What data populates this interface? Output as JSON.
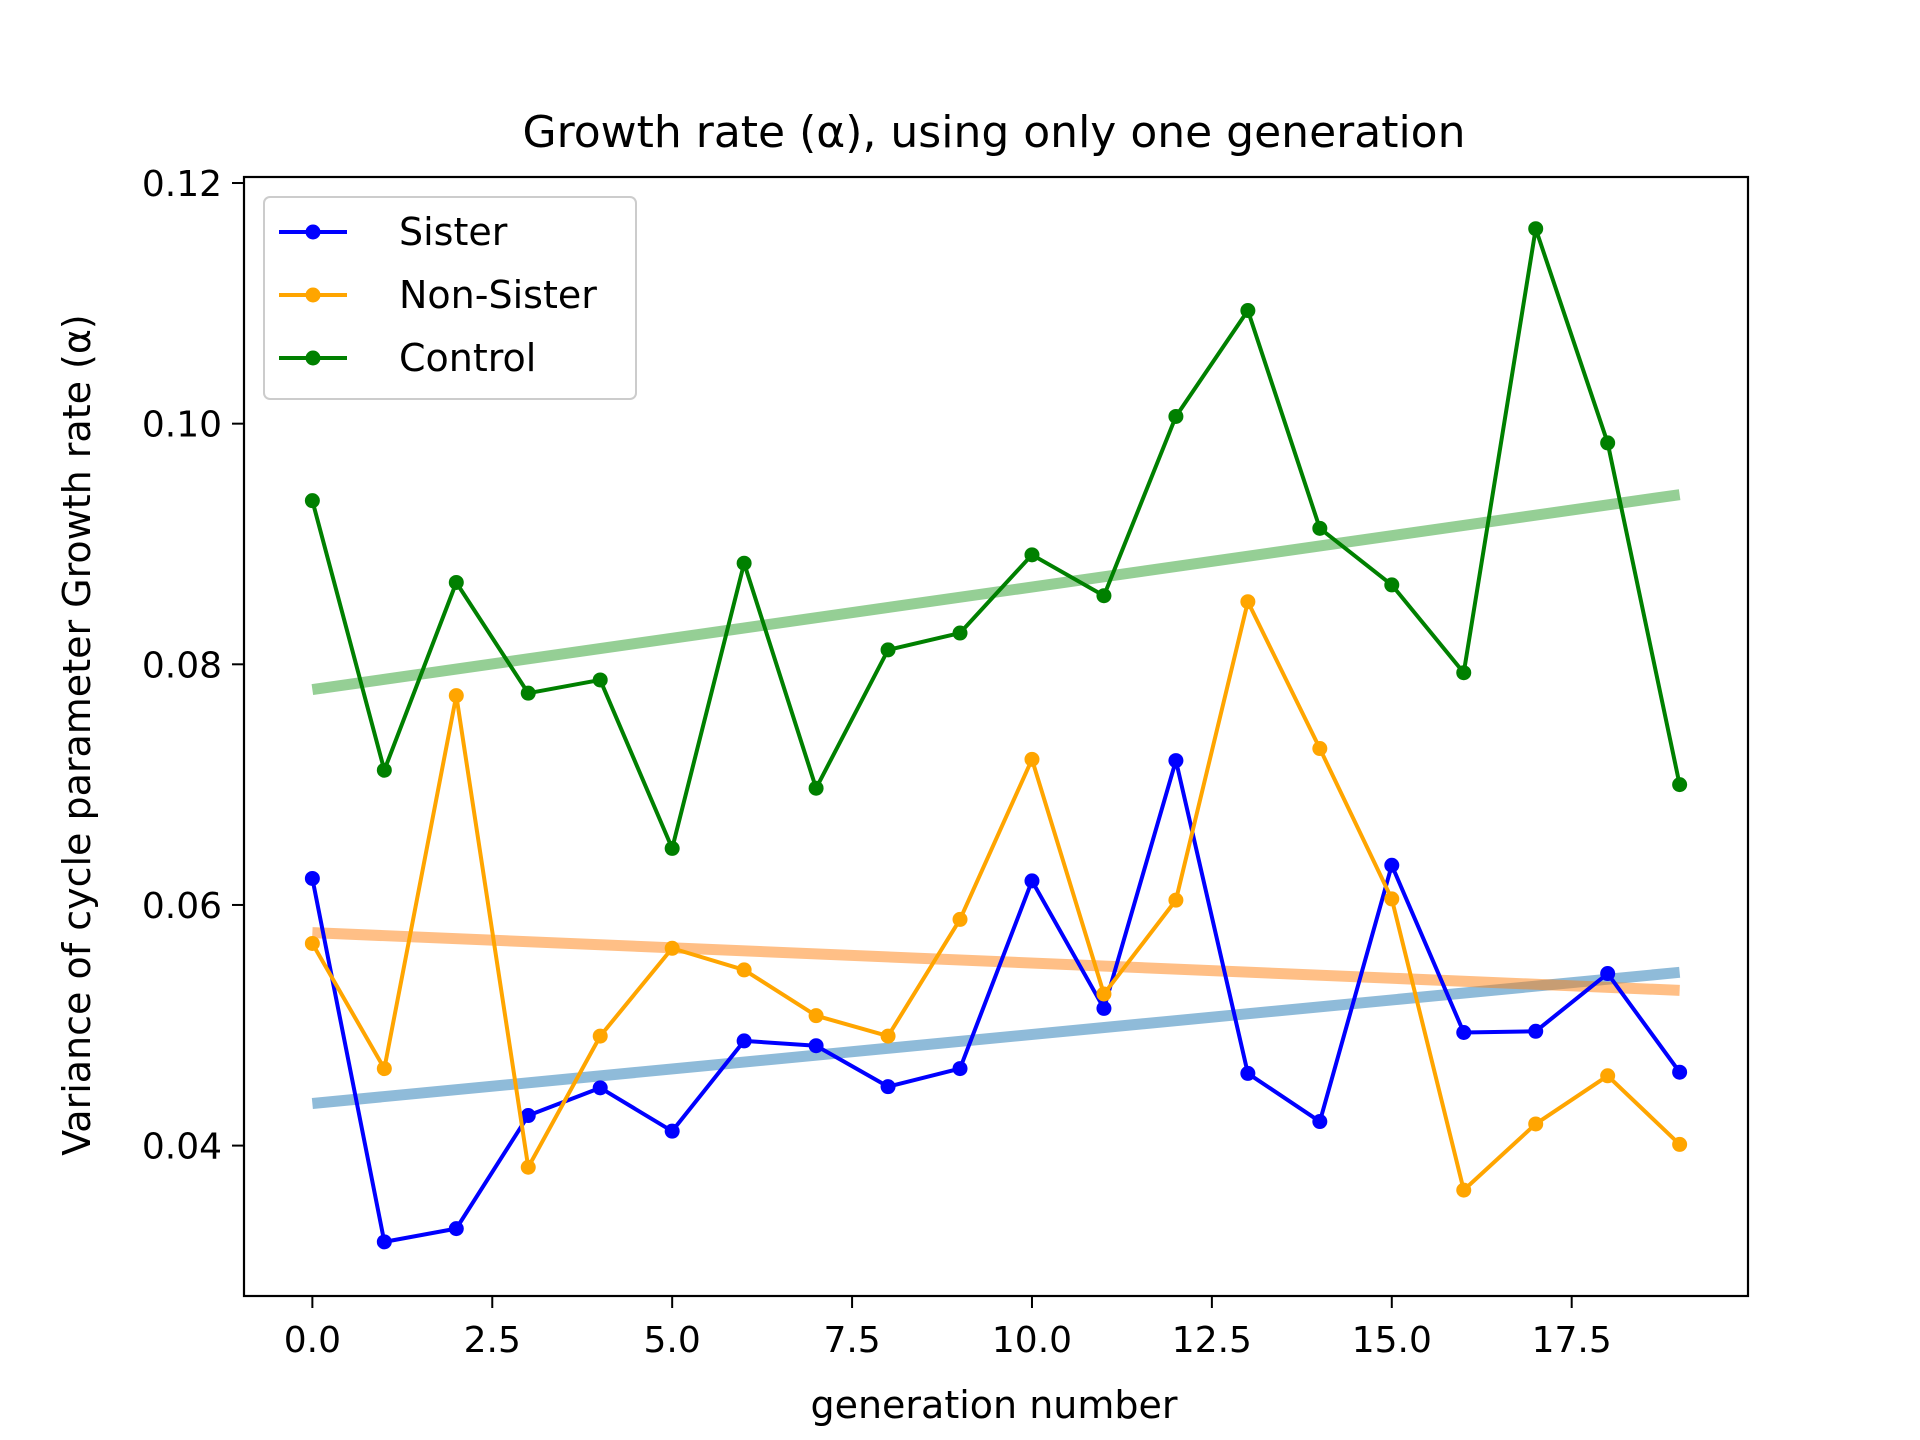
{
  "chart_data": {
    "type": "line",
    "title": "Growth rate (α), using only one generation",
    "xlabel": "generation number",
    "ylabel": "Variance of cycle parameter Growth rate (α)",
    "xlim": [
      -0.95,
      19.95
    ],
    "ylim": [
      0.0275,
      0.1205
    ],
    "xticks": [
      0.0,
      2.5,
      5.0,
      7.5,
      10.0,
      12.5,
      15.0,
      17.5
    ],
    "xtick_labels": [
      "0.0",
      "2.5",
      "5.0",
      "7.5",
      "10.0",
      "12.5",
      "15.0",
      "17.5"
    ],
    "yticks": [
      0.04,
      0.06,
      0.08,
      0.1,
      0.12
    ],
    "ytick_labels": [
      "0.04",
      "0.06",
      "0.08",
      "0.10",
      "0.12"
    ],
    "grid": false,
    "legend_position": "top-left",
    "x": [
      0,
      1,
      2,
      3,
      4,
      5,
      6,
      7,
      8,
      9,
      10,
      11,
      12,
      13,
      14,
      15,
      16,
      17,
      18,
      19
    ],
    "series": [
      {
        "name": "Sister",
        "color": "#0000ff",
        "values": [
          0.0622,
          0.032,
          0.0331,
          0.0425,
          0.0448,
          0.0412,
          0.0487,
          0.0483,
          0.0449,
          0.0464,
          0.062,
          0.0514,
          0.072,
          0.046,
          0.042,
          0.0633,
          0.0494,
          0.0495,
          0.0543,
          0.0461
        ],
        "trend": {
          "x": [
            0,
            19
          ],
          "y": [
            0.0435,
            0.0544
          ],
          "color": "#1f77b4"
        }
      },
      {
        "name": "Non-Sister",
        "color": "#ffa500",
        "values": [
          0.0568,
          0.0464,
          0.0774,
          0.0382,
          0.0491,
          0.0564,
          0.0546,
          0.0508,
          0.0491,
          0.0588,
          0.0721,
          0.0526,
          0.0604,
          0.0852,
          0.073,
          0.0605,
          0.0363,
          0.0418,
          0.0458,
          0.0401
        ],
        "trend": {
          "x": [
            0,
            19
          ],
          "y": [
            0.0577,
            0.0529
          ],
          "color": "#ff7f0e"
        }
      },
      {
        "name": "Control",
        "color": "#008000",
        "values": [
          0.0936,
          0.0712,
          0.0868,
          0.0776,
          0.0787,
          0.0647,
          0.0884,
          0.0697,
          0.0812,
          0.0826,
          0.0891,
          0.0857,
          0.1006,
          0.1094,
          0.0913,
          0.0866,
          0.0793,
          0.1162,
          0.0984,
          0.07
        ],
        "trend": {
          "x": [
            0,
            19
          ],
          "y": [
            0.0779,
            0.0941
          ],
          "color": "#2ca02c"
        }
      }
    ]
  }
}
